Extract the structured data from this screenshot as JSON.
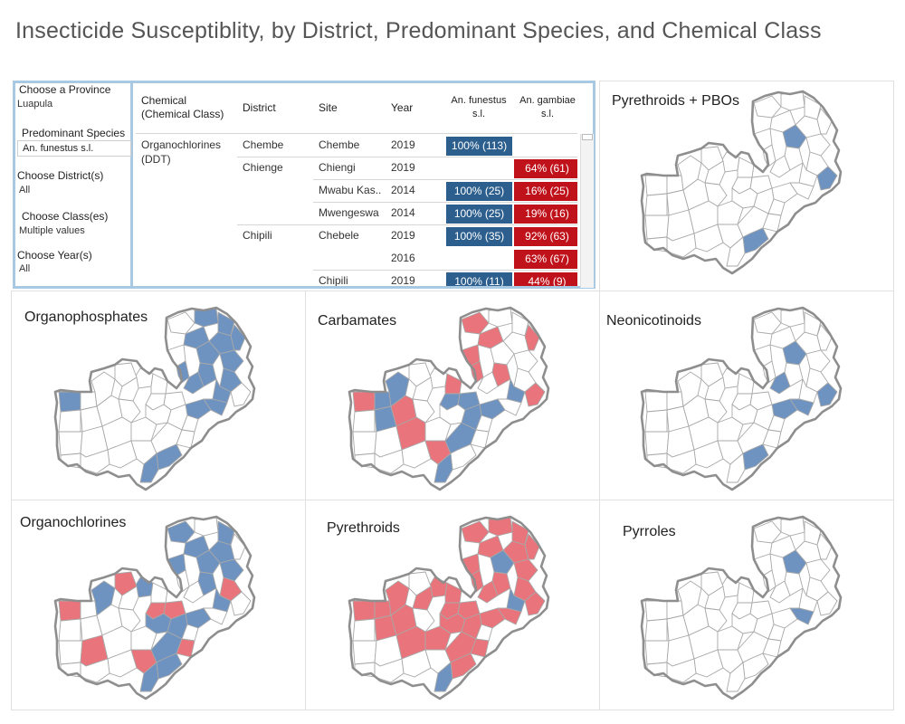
{
  "page": {
    "title": "Insecticide Susceptiblity, by District, Predominant Species, and Chemical Class"
  },
  "filters": {
    "province_label": "Choose a Province",
    "province_value": "Luapula",
    "species_label": "Predominant Species",
    "species_value": "An. funestus s.l.",
    "district_label": "Choose District(s)",
    "district_value": "All",
    "class_label": "Choose Class(es)",
    "class_value": "Multiple values",
    "year_label": "Choose Year(s)",
    "year_value": "All"
  },
  "table": {
    "headers": {
      "chemical": "Chemical\n(Chemical Class)",
      "district": "District",
      "site": "Site",
      "year": "Year",
      "funestus": "An. funestus\ns.l.",
      "gambiae": "An. gambiae\ns.l."
    },
    "chemical_name": "Organochlorines\n(DDT)",
    "rows": [
      {
        "district": "Chembe",
        "site": "Chembe",
        "year": "2019",
        "funestus": "100% (113)",
        "gambiae": ""
      },
      {
        "district": "Chienge",
        "site": "Chiengi",
        "year": "2019",
        "funestus": "",
        "gambiae": "64% (61)"
      },
      {
        "district": "",
        "site": "Mwabu Kas..",
        "year": "2014",
        "funestus": "100% (25)",
        "gambiae": "16% (25)"
      },
      {
        "district": "",
        "site": "Mwengeswa",
        "year": "2014",
        "funestus": "100% (25)",
        "gambiae": "19% (16)"
      },
      {
        "district": "Chipili",
        "site": "Chebele",
        "year": "2019",
        "funestus": "100% (35)",
        "gambiae": "92% (63)"
      },
      {
        "district": "",
        "site": "",
        "year": "2016",
        "funestus": "",
        "gambiae": "63% (67)"
      },
      {
        "district": "",
        "site": "Chipili",
        "year": "2019",
        "funestus": "100% (11)",
        "gambiae": "44% (9)"
      }
    ]
  },
  "panels": [
    {
      "title": "Pyrethroids + PBOs",
      "pattern": "pbo"
    },
    {
      "title": "Organophosphates",
      "pattern": "op"
    },
    {
      "title": "Carbamates",
      "pattern": "carb"
    },
    {
      "title": "Neonicotinoids",
      "pattern": "neo"
    },
    {
      "title": "Organochlorines",
      "pattern": "oc"
    },
    {
      "title": "Pyrethroids",
      "pattern": "pyr"
    },
    {
      "title": "Pyrroles",
      "pattern": "pyrr"
    }
  ],
  "colors": {
    "susceptible": "#6f93c0",
    "resistant": "#e9747b",
    "border": "#8e8e8e",
    "cell_blue": "#2d5f8e",
    "cell_red": "#c0121b"
  }
}
